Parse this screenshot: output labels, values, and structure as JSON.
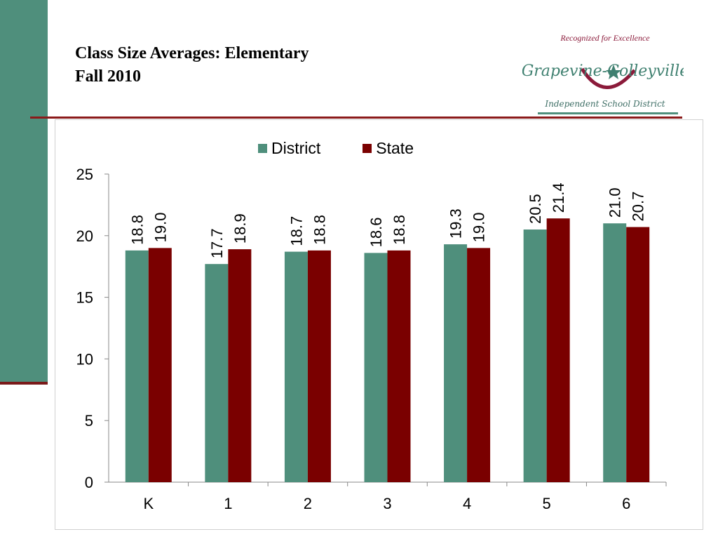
{
  "slide": {
    "title_line1": "Class Size Averages: Elementary",
    "title_line2": "Fall 2010"
  },
  "logo": {
    "tagline": "Recognized for Excellence",
    "name": "Grapevine-Colleyville",
    "subtitle": "Independent School District"
  },
  "colors": {
    "accent_green": "#4f8f7c",
    "accent_red": "#7a0000",
    "rule_red": "#8b1a1a"
  },
  "chart_data": {
    "type": "bar",
    "categories": [
      "K",
      "1",
      "2",
      "3",
      "4",
      "5",
      "6"
    ],
    "series": [
      {
        "name": "District",
        "color": "#4f8f7c",
        "values": [
          18.8,
          17.7,
          18.7,
          18.6,
          19.3,
          20.5,
          21.0
        ],
        "labels": [
          "18.8",
          "17.7",
          "18.7",
          "18.6",
          "19.3",
          "20.5",
          "21.0"
        ]
      },
      {
        "name": "State",
        "color": "#7a0000",
        "values": [
          19.0,
          18.9,
          18.8,
          18.8,
          19.0,
          21.4,
          20.7
        ],
        "labels": [
          "19.0",
          "18.9",
          "18.8",
          "18.8",
          "19.0",
          "21.4",
          "20.7"
        ]
      }
    ],
    "ylim": [
      0,
      25
    ],
    "yticks": [
      "0",
      "5",
      "10",
      "15",
      "20",
      "25"
    ],
    "legend_position": "top",
    "grid": false
  }
}
